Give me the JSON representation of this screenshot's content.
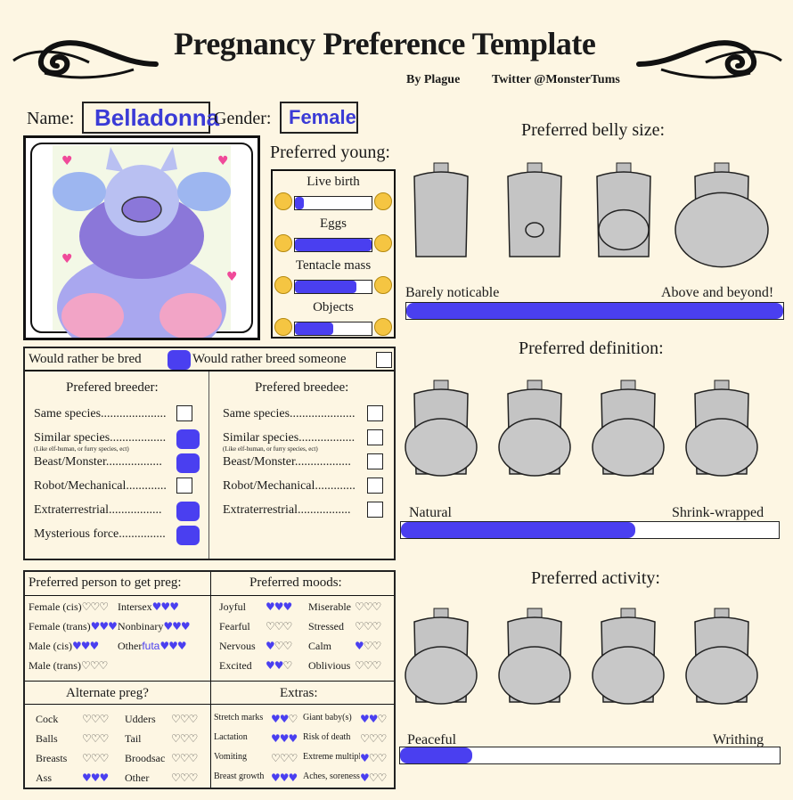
{
  "header": {
    "title": "Pregnancy Preference Template",
    "author": "By Plague",
    "twitter": "Twitter @MonsterTums"
  },
  "profile": {
    "name_label": "Name:",
    "name_value": "Belladonna",
    "gender_label": "Gender:",
    "gender_value": "Female"
  },
  "young": {
    "title": "Preferred young:",
    "items": [
      {
        "label": "Live birth",
        "fill": 0.12
      },
      {
        "label": "Eggs",
        "fill": 1.0
      },
      {
        "label": "Tentacle mass",
        "fill": 0.8
      },
      {
        "label": "Objects",
        "fill": 0.5
      }
    ]
  },
  "bred": {
    "would_be_bred": "Would rather be bred",
    "would_breed": "Would rather breed someone"
  },
  "breeder": {
    "title": "Prefered breeder:",
    "items": [
      "Same species.....................",
      "Similar species..................",
      "Beast/Monster..................",
      "Robot/Mechanical.............",
      "Extraterrestrial.................",
      "Mysterious force..............."
    ],
    "checked": [
      false,
      true,
      true,
      false,
      true,
      true
    ]
  },
  "breedee": {
    "title": "Prefered breedee:",
    "items": [
      "Same species.....................",
      "Similar species..................",
      "Beast/Monster..................",
      "Robot/Mechanical.............",
      "Extraterrestrial................."
    ],
    "checked": [
      false,
      false,
      false,
      false,
      false
    ]
  },
  "similar_note": "(Like elf-human, or furry species, ect)",
  "person": {
    "title": "Preferred person to get preg:",
    "items": [
      {
        "label": "Female (cis)",
        "hearts": 0
      },
      {
        "label": "Intersex",
        "hearts": 3
      },
      {
        "label": "Female (trans)",
        "hearts": 3
      },
      {
        "label": "Nonbinary",
        "hearts": 3
      },
      {
        "label": "Male (cis)",
        "hearts": 3
      },
      {
        "label": "Other",
        "hearts": 3
      },
      {
        "label": "Male (trans)",
        "hearts": 0
      }
    ],
    "other_note": "futa"
  },
  "moods": {
    "title": "Preferred moods:",
    "items": [
      {
        "label": "Joyful",
        "hearts": 3
      },
      {
        "label": "Miserable",
        "hearts": 0
      },
      {
        "label": "Fearful",
        "hearts": 0
      },
      {
        "label": "Stressed",
        "hearts": 0
      },
      {
        "label": "Nervous",
        "hearts": 1
      },
      {
        "label": "Calm",
        "hearts": 1
      },
      {
        "label": "Excited",
        "hearts": 2
      },
      {
        "label": "Oblivious",
        "hearts": 0
      }
    ]
  },
  "alternate": {
    "title": "Alternate preg?",
    "items": [
      {
        "label": "Cock",
        "hearts": 0
      },
      {
        "label": "Udders",
        "hearts": 0
      },
      {
        "label": "Balls",
        "hearts": 0
      },
      {
        "label": "Tail",
        "hearts": 0
      },
      {
        "label": "Breasts",
        "hearts": 0
      },
      {
        "label": "Broodsac",
        "hearts": 0
      },
      {
        "label": "Ass",
        "hearts": 3
      },
      {
        "label": "Other",
        "hearts": 0
      }
    ]
  },
  "extras": {
    "title": "Extras:",
    "items": [
      {
        "label": "Stretch marks",
        "hearts": 2
      },
      {
        "label": "Giant baby(s)",
        "hearts": 2
      },
      {
        "label": "Lactation",
        "hearts": 3
      },
      {
        "label": "Risk of death",
        "hearts": 0
      },
      {
        "label": "Vomiting",
        "hearts": 0
      },
      {
        "label": "Extreme multiples",
        "hearts": 1
      },
      {
        "label": "Breast growth",
        "hearts": 3
      },
      {
        "label": "Aches, soreness",
        "hearts": 1
      }
    ]
  },
  "belly_size": {
    "title": "Preferred belly size:",
    "left": "Barely noticable",
    "right": "Above and beyond!",
    "level": 1.0
  },
  "definition": {
    "title": "Preferred definition:",
    "left": "Natural",
    "right": "Shrink-wrapped",
    "level": 0.62
  },
  "activity": {
    "title": "Preferred activity:",
    "left": "Peaceful",
    "right": "Writhing",
    "level": 0.19
  },
  "colors": {
    "accent": "#4a3ff0",
    "background": "#fdf6e3"
  }
}
